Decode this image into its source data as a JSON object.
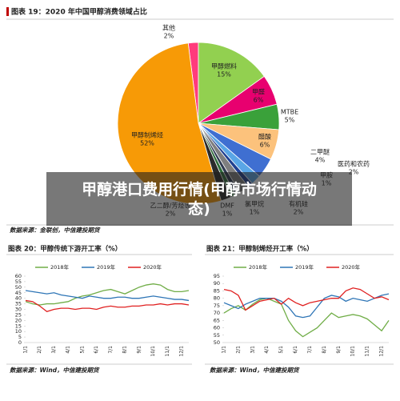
{
  "overlay_title": "甲醇港口费用行情(甲醇市场行情动态)",
  "chart_data": [
    {
      "type": "pie",
      "title": "图表 19：2020 年中国甲醇消费领域占比",
      "source": "数据来源：金联创，中信建投期货",
      "categories": [
        "其他",
        "甲醇燃料",
        "甲醛",
        "MTBE",
        "醋酸",
        "二甲醚",
        "医药和农药",
        "甲胺",
        "有机硅",
        "氯甲烷",
        "DMF",
        "乙二醇/芳烃等",
        "甲醇制烯烃"
      ],
      "values": [
        2,
        15,
        6,
        5,
        6,
        4,
        2,
        1,
        2,
        1,
        1,
        2,
        52
      ],
      "value_labels": [
        "2%",
        "15%",
        "6%",
        "5%",
        "6%",
        "4%",
        "2%",
        "1%",
        "2%",
        "1%",
        "1%",
        "2%",
        "52%"
      ],
      "colors": [
        "#ff3b7c",
        "#92d050",
        "#e8006f",
        "#3aa13a",
        "#fcc27c",
        "#3f6fd1",
        "#5aa6e6",
        "#1f3f8f",
        "#7f7f7f",
        "#303a50",
        "#2e6b3a",
        "#2b2b2b",
        "#f79a06"
      ]
    },
    {
      "type": "line",
      "title": "图表 20：甲醇传统下游开工率（%）",
      "source": "数据来源：Wind，中信建投期货",
      "categories": [
        "1/1",
        null,
        "2/1",
        null,
        "3/1",
        null,
        "4/1",
        null,
        "5/1",
        null,
        "6/1",
        null,
        "7/1",
        null,
        "8/1",
        null,
        "9/1",
        null,
        "10/1",
        null,
        "11/1",
        null,
        "12/1",
        null
      ],
      "series": [
        {
          "name": "2018年",
          "color": "#70ad47",
          "values": [
            37,
            35,
            34,
            35,
            35,
            36,
            37,
            40,
            42,
            43,
            45,
            47,
            48,
            46,
            44,
            47,
            50,
            52,
            53,
            52,
            48,
            46,
            46,
            47
          ]
        },
        {
          "name": "2019年",
          "color": "#2e75b6",
          "values": [
            47,
            46,
            45,
            44,
            45,
            43,
            42,
            41,
            40,
            42,
            41,
            40,
            40,
            41,
            41,
            40,
            40,
            41,
            42,
            41,
            40,
            39,
            39,
            38
          ]
        },
        {
          "name": "2020年",
          "color": "#e02020",
          "values": [
            38,
            37,
            33,
            28,
            30,
            31,
            31,
            30,
            31,
            31,
            30,
            32,
            33,
            32,
            32,
            33,
            33,
            34,
            34,
            35,
            34,
            35,
            35,
            34
          ]
        }
      ],
      "ylim": [
        0,
        60
      ],
      "yticks": [
        0,
        5,
        10,
        15,
        20,
        25,
        30,
        35,
        40,
        45,
        50,
        55,
        60
      ]
    },
    {
      "type": "line",
      "title": "图表 21：甲醇制烯烃开工率（%）",
      "source": "数据来源：Wind，中信建投期货",
      "categories": [
        "1/1",
        null,
        "2/1",
        null,
        "3/1",
        null,
        "4/1",
        null,
        "5/1",
        null,
        "6/1",
        null,
        "7/1",
        null,
        "8/1",
        null,
        "9/1",
        null,
        "10/1",
        null,
        "11/1",
        null,
        "12/1",
        null
      ],
      "series": [
        {
          "name": "2018年",
          "color": "#70ad47",
          "values": [
            70,
            73,
            75,
            72,
            76,
            79,
            80,
            78,
            76,
            65,
            58,
            54,
            57,
            60,
            65,
            70,
            67,
            68,
            69,
            68,
            66,
            62,
            58,
            65
          ]
        },
        {
          "name": "2019年",
          "color": "#2e75b6",
          "values": [
            77,
            75,
            73,
            76,
            78,
            80,
            80,
            80,
            78,
            74,
            68,
            67,
            68,
            74,
            80,
            82,
            81,
            78,
            80,
            79,
            78,
            80,
            82,
            83
          ]
        },
        {
          "name": "2020年",
          "color": "#e02020",
          "values": [
            86,
            85,
            82,
            72,
            75,
            78,
            79,
            80,
            76,
            80,
            77,
            75,
            77,
            78,
            79,
            80,
            80,
            85,
            87,
            86,
            83,
            80,
            81,
            79
          ]
        }
      ],
      "ylim": [
        50,
        95
      ],
      "yticks": [
        50,
        55,
        60,
        65,
        70,
        75,
        80,
        85,
        90,
        95
      ]
    }
  ]
}
